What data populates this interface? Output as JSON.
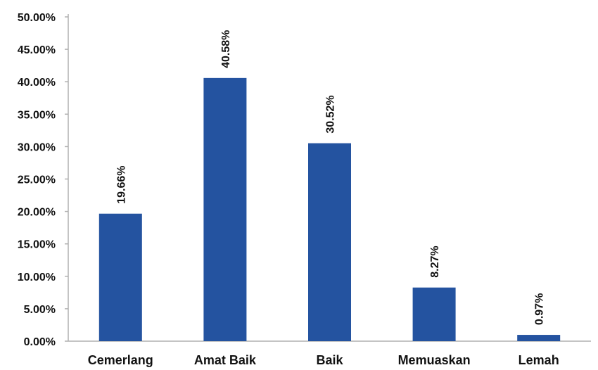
{
  "chart_data": {
    "type": "bar",
    "title": "",
    "xlabel": "",
    "ylabel": "",
    "categories": [
      "Cemerlang",
      "Amat Baik",
      "Baik",
      "Memuaskan",
      "Lemah"
    ],
    "values": [
      19.66,
      40.58,
      30.52,
      8.27,
      0.97
    ],
    "data_labels": [
      "19.66%",
      "40.58%",
      "30.52%",
      "8.27%",
      "0.97%"
    ],
    "ylim": [
      0,
      50
    ],
    "y_ticks": [
      0,
      5,
      10,
      15,
      20,
      25,
      30,
      35,
      40,
      45,
      50
    ],
    "y_tick_labels": [
      "0.00%",
      "5.00%",
      "10.00%",
      "15.00%",
      "20.00%",
      "25.00%",
      "30.00%",
      "35.00%",
      "40.00%",
      "45.00%",
      "50.00%"
    ],
    "grid": false,
    "legend": "none",
    "bar_color": "#2453A0",
    "axis_color": "#b0b0b0"
  }
}
